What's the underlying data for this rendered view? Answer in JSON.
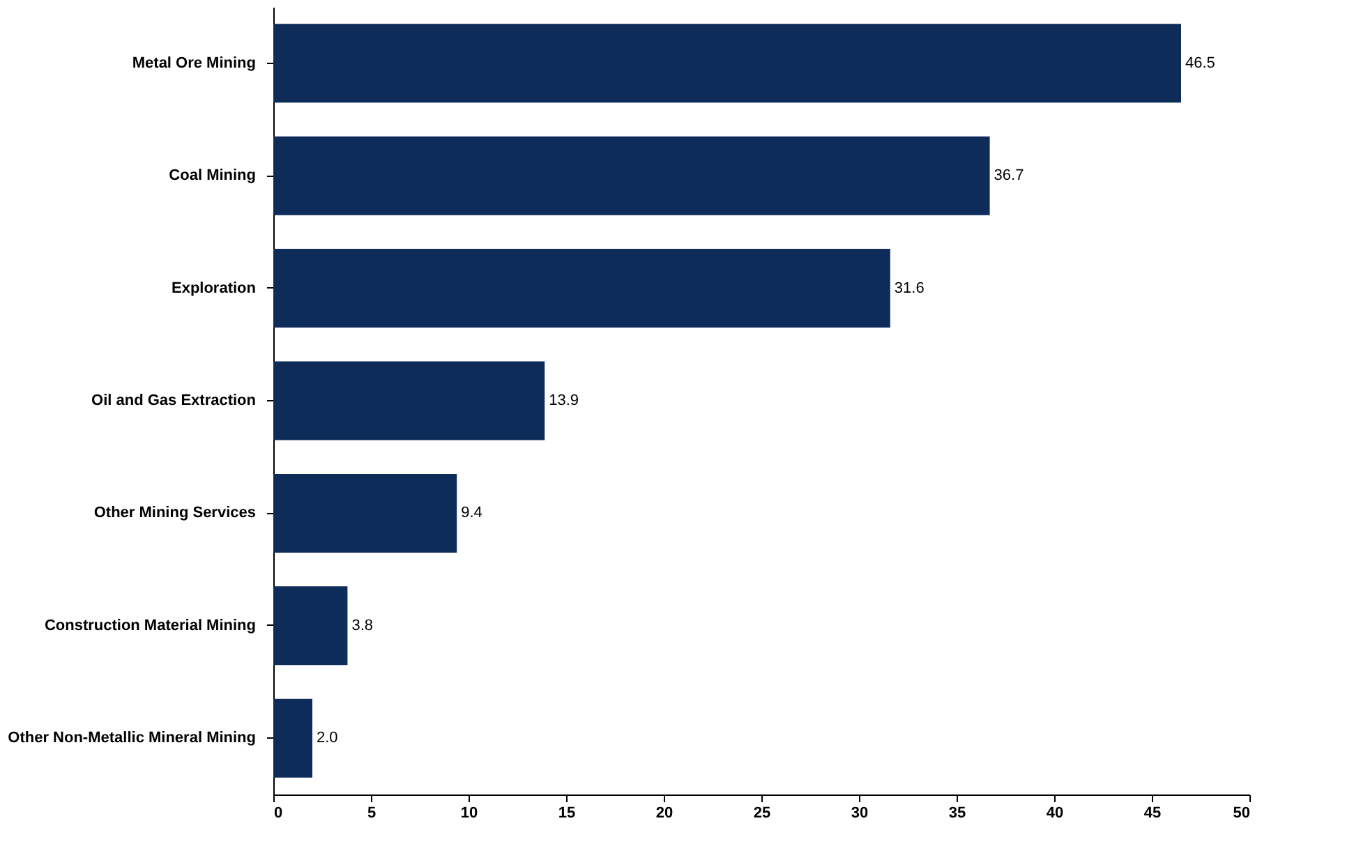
{
  "chart_data": {
    "type": "bar",
    "orientation": "horizontal",
    "categories": [
      "Metal Ore Mining",
      "Coal Mining",
      "Exploration",
      "Oil and Gas Extraction",
      "Other Mining Services",
      "Construction Material Mining",
      "Other Non-Metallic Mineral Mining"
    ],
    "values": [
      46.5,
      36.7,
      31.6,
      13.9,
      9.4,
      3.8,
      2.0
    ],
    "color": "#0d2c5a",
    "xlim": [
      0,
      50
    ],
    "xticks": [
      0,
      5,
      10,
      15,
      20,
      25,
      30,
      35,
      40,
      45,
      50
    ],
    "grid": false,
    "value_labels": [
      "46.5",
      "36.7",
      "31.6",
      "13.9",
      "9.4",
      "3.8",
      "2.0"
    ]
  }
}
